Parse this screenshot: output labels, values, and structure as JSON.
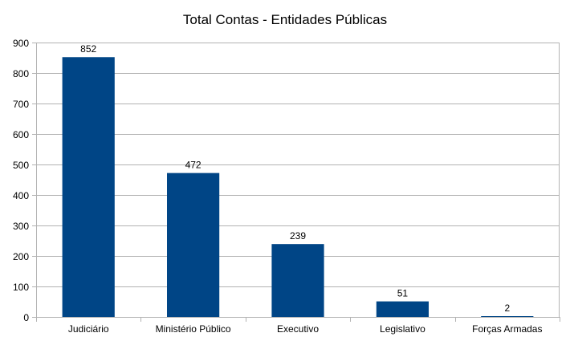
{
  "chart_data": {
    "type": "bar",
    "title": "Total Contas - Entidades Públicas",
    "categories": [
      "Judiciário",
      "Ministério Público",
      "Executivo",
      "Legislativo",
      "Forças Armadas"
    ],
    "values": [
      852,
      472,
      239,
      51,
      2
    ],
    "ylim": [
      0,
      900
    ],
    "yticks": [
      0,
      100,
      200,
      300,
      400,
      500,
      600,
      700,
      800,
      900
    ],
    "grid": true,
    "legend": "none",
    "bar_color": "#004586",
    "grid_color": "#b3b3b3"
  }
}
